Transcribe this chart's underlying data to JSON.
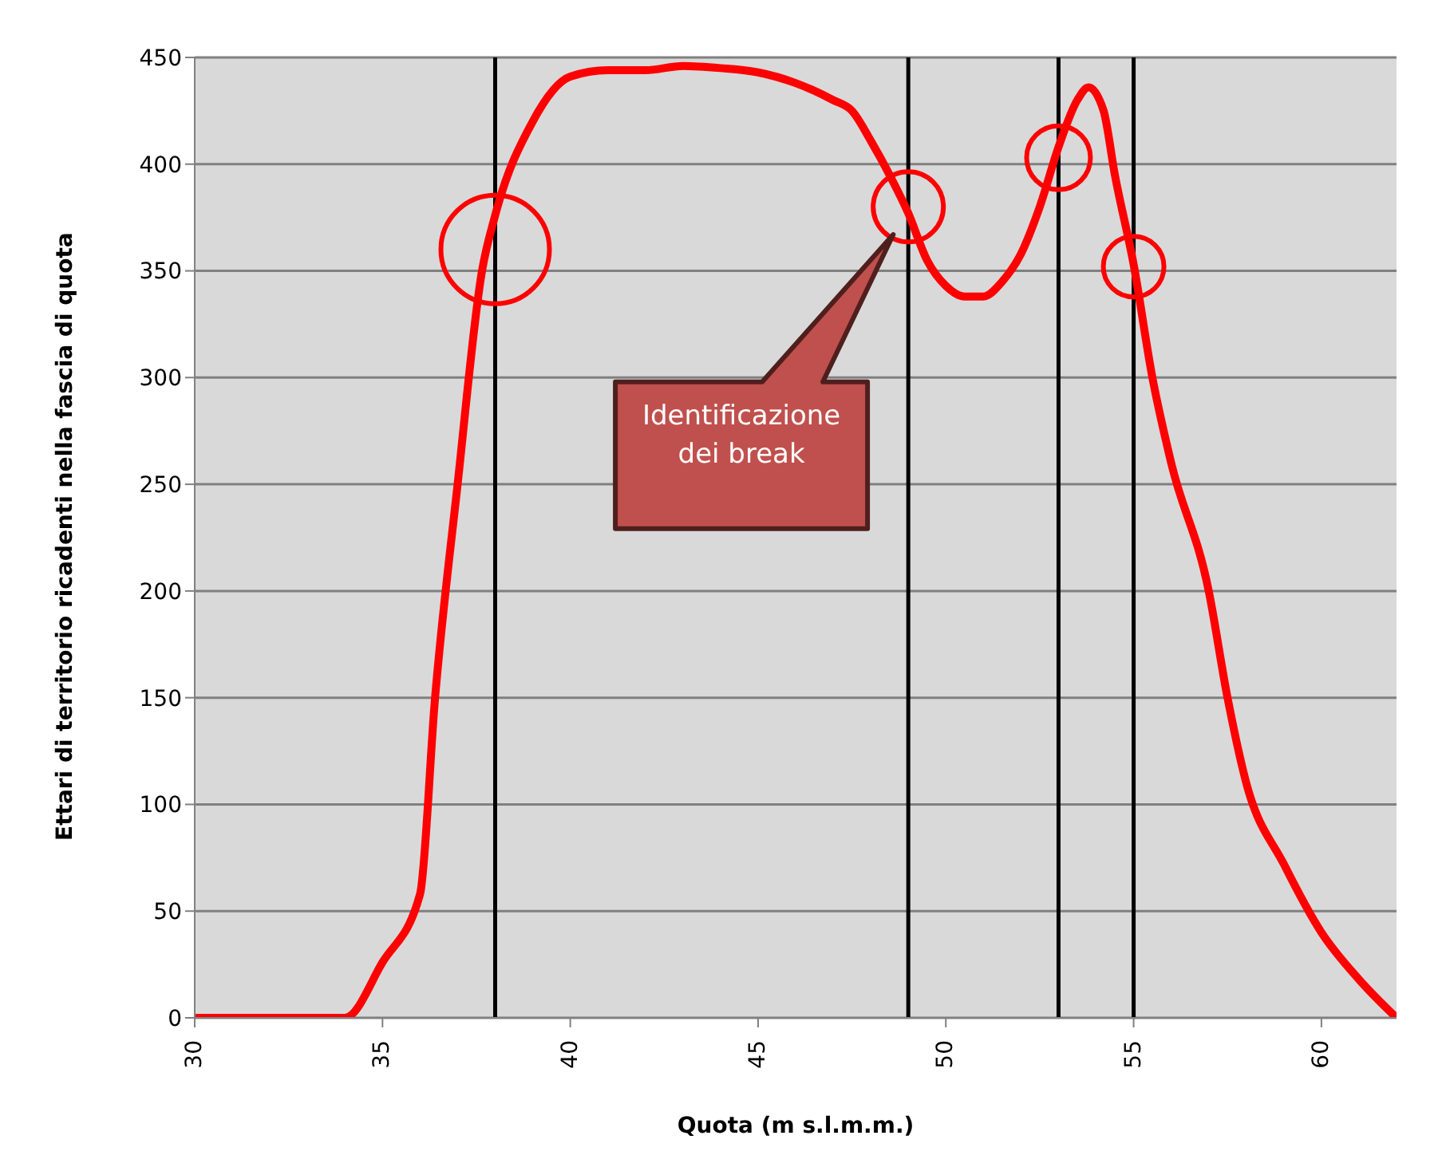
{
  "chart_data": {
    "type": "line",
    "xlabel": "Quota (m s.l.m.m.)",
    "ylabel": "Ettari di territorio ricadenti nella fascia di quota",
    "x": [
      30,
      31,
      32,
      32.5,
      33,
      34,
      35,
      36,
      36.4,
      37,
      37.65,
      38,
      39,
      40,
      41,
      42,
      43,
      44,
      45,
      46,
      47,
      47.5,
      48,
      48.5,
      49,
      49.5,
      50,
      50.5,
      51,
      51.5,
      52,
      52.5,
      53,
      53.5,
      53.8,
      54.2,
      54.5,
      55,
      55.5,
      56,
      57,
      57.5,
      58,
      59,
      60,
      61,
      62
    ],
    "series": [
      {
        "color": "#ff0000",
        "values": [
          0,
          0,
          0,
          0,
          0,
          0,
          26,
          58,
          150,
          250,
          350,
          376,
          420,
          441,
          444,
          444,
          446,
          445,
          443,
          438,
          430,
          425,
          411,
          395,
          377,
          355,
          343,
          338,
          338,
          345,
          358,
          380,
          408,
          430,
          436,
          425,
          395,
          353,
          300,
          260,
          200,
          150,
          110,
          72,
          40,
          18,
          0
        ]
      }
    ],
    "xlim": [
      30,
      62
    ],
    "xticks": [
      30,
      35,
      40,
      45,
      50,
      55,
      60
    ],
    "ylim": [
      0,
      450
    ],
    "yticks": [
      0,
      50,
      100,
      150,
      200,
      250,
      300,
      350,
      400,
      450
    ],
    "grid": "y",
    "legend": false,
    "marker": "none",
    "line_style": "solid",
    "ref_lines": [
      {
        "axis": "x",
        "value": 38,
        "color": "#000000"
      },
      {
        "axis": "x",
        "value": 49,
        "color": "#000000"
      },
      {
        "axis": "x",
        "value": 53,
        "color": "#000000"
      },
      {
        "axis": "x",
        "value": 55,
        "color": "#000000"
      }
    ],
    "annotations": [
      "Identificazione dei break"
    ]
  }
}
